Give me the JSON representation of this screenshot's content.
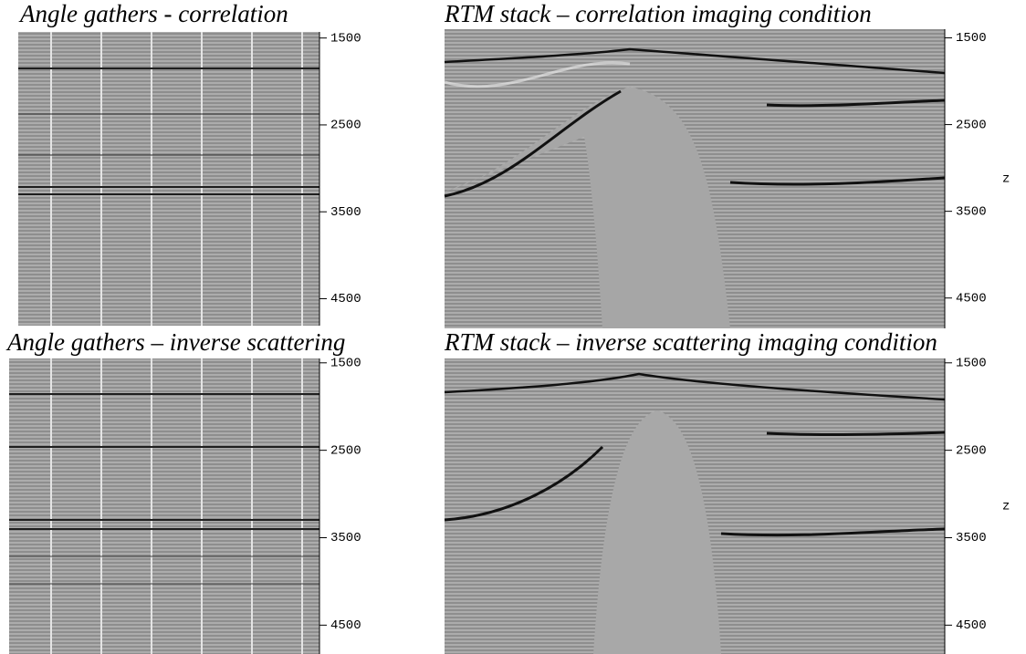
{
  "panels": [
    {
      "title": "Angle gathers - correlation",
      "ylim": [
        1430,
        4810
      ],
      "yticks": [
        1500,
        2500,
        3500,
        4500
      ]
    },
    {
      "title": "RTM stack – correlation imaging condition",
      "axis_label": "z",
      "ylim": [
        1400,
        4850
      ],
      "yticks": [
        1500,
        2500,
        3500,
        4500
      ]
    },
    {
      "title": "Angle gathers – inverse scattering",
      "ylim": [
        1450,
        4830
      ],
      "yticks": [
        1500,
        2500,
        3500,
        4500
      ]
    },
    {
      "title": "RTM stack – inverse scattering imaging condition",
      "axis_label": "z",
      "ylim": [
        1450,
        4830
      ],
      "yticks": [
        1500,
        2500,
        3500,
        4500
      ]
    }
  ]
}
